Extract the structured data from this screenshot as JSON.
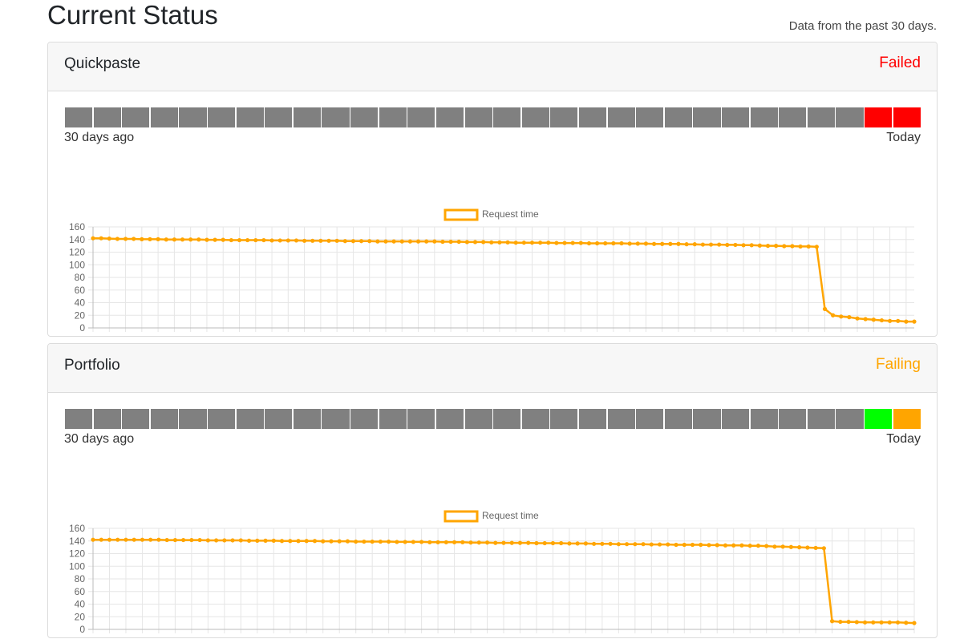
{
  "page": {
    "title": "Current Status",
    "subtitle": "Data from the past 30 days."
  },
  "colors": {
    "gray": "#808080",
    "red": "#ff0000",
    "green": "#00ff00",
    "orange": "#ffa500",
    "failed_text": "#ff0000",
    "failing_text": "#ffa500",
    "line": "#ffa500"
  },
  "services": [
    {
      "name": "Quickpaste",
      "status": "Failed",
      "status_color": "#ff0000",
      "days": [
        "gray",
        "gray",
        "gray",
        "gray",
        "gray",
        "gray",
        "gray",
        "gray",
        "gray",
        "gray",
        "gray",
        "gray",
        "gray",
        "gray",
        "gray",
        "gray",
        "gray",
        "gray",
        "gray",
        "gray",
        "gray",
        "gray",
        "gray",
        "gray",
        "gray",
        "gray",
        "gray",
        "gray",
        "red",
        "red"
      ],
      "range_start": "30 days ago",
      "range_end": "Today"
    },
    {
      "name": "Portfolio",
      "status": "Failing",
      "status_color": "#ffa500",
      "days": [
        "gray",
        "gray",
        "gray",
        "gray",
        "gray",
        "gray",
        "gray",
        "gray",
        "gray",
        "gray",
        "gray",
        "gray",
        "gray",
        "gray",
        "gray",
        "gray",
        "gray",
        "gray",
        "gray",
        "gray",
        "gray",
        "gray",
        "gray",
        "gray",
        "gray",
        "gray",
        "gray",
        "gray",
        "green",
        "orange"
      ],
      "range_start": "30 days ago",
      "range_end": "Today"
    }
  ],
  "chart_data": [
    {
      "type": "line",
      "legend": "Request time",
      "ylim": [
        0,
        160
      ],
      "yticks": [
        0,
        20,
        40,
        60,
        80,
        100,
        120,
        140,
        160
      ],
      "grid": true,
      "legend_position": "top",
      "xticks": [
        "10772",
        "11001",
        "7774",
        "9725",
        "10062",
        "7454",
        "9081",
        "9843",
        "10075",
        "6678",
        "7826",
        "9235",
        "10255",
        "10982",
        "6789",
        "6891",
        "9397",
        "10405",
        "10871",
        "11171",
        "6864",
        "7084",
        "7254",
        "9285",
        "10365",
        "10758",
        "6799",
        "8905",
        "8138",
        "6904",
        "8698",
        "8795",
        "6699",
        "8705",
        "9416",
        "10125",
        "10512",
        "7968",
        "8725",
        "9071",
        "7304",
        "9216",
        "7534",
        "6637",
        "6944",
        "9485",
        "9572",
        "9555",
        "9468",
        "9585"
      ],
      "values": [
        142,
        142,
        141.5,
        141,
        141,
        141,
        140.5,
        140.5,
        140.5,
        140,
        140,
        140,
        140,
        140,
        139.5,
        139.5,
        139.5,
        139,
        139,
        139,
        139,
        139,
        138.5,
        138.5,
        138.5,
        138.5,
        138,
        138,
        138,
        138,
        138,
        137.5,
        137.5,
        137.5,
        137.5,
        137,
        137,
        137,
        137,
        137,
        137,
        137,
        137,
        136.5,
        136.5,
        136.5,
        136,
        136,
        136,
        135.5,
        135.5,
        135.5,
        135,
        135,
        135,
        135,
        135,
        134.5,
        134.5,
        134.5,
        134.5,
        134,
        134,
        134,
        134,
        134,
        133.5,
        133.5,
        133.5,
        133,
        133,
        133,
        133,
        132.5,
        132.5,
        132,
        132,
        132,
        131.5,
        131.5,
        131,
        131,
        130.5,
        130,
        130,
        129.5,
        129.5,
        129,
        129,
        128.5,
        30,
        20,
        18,
        17,
        15,
        14,
        13,
        12,
        11,
        11,
        10,
        10
      ]
    },
    {
      "type": "line",
      "legend": "Request time",
      "ylim": [
        0,
        160
      ],
      "yticks": [
        0,
        20,
        40,
        60,
        80,
        100,
        120,
        140,
        160
      ],
      "grid": true,
      "legend_position": "top",
      "xticks": [
        "6935",
        "7205",
        "7522",
        "9926",
        "6590",
        "6800",
        "7702",
        "8740",
        "10266",
        "7035",
        "8189",
        "10256",
        "10336",
        "6638",
        "7490",
        "7827",
        "8053",
        "8756",
        "11082",
        "7135",
        "8156",
        "8679",
        "9417",
        "6925",
        "7683",
        "8806",
        "10012",
        "10882",
        "7939",
        "6715",
        "6865",
        "7322",
        "8609",
        "9844",
        "6620",
        "6700",
        "6836",
        "8139",
        "6760",
        "7555",
        "10773",
        "8089",
        "7275",
        "8640",
        "9637",
        "9574",
        "9469",
        "9521",
        "9586",
        "9536"
      ],
      "values": [
        142,
        142,
        142,
        142,
        142,
        142,
        142,
        142,
        142,
        141.5,
        141.5,
        141.5,
        141.5,
        141.5,
        141,
        141,
        141,
        141,
        141,
        140.5,
        140.5,
        140.5,
        140.5,
        140,
        140,
        140,
        140,
        140,
        139.5,
        139.5,
        139.5,
        139.5,
        139,
        139,
        139,
        139,
        139,
        138.5,
        138.5,
        138.5,
        138.5,
        138,
        138,
        138,
        138,
        138,
        137.5,
        137.5,
        137.5,
        137,
        137,
        137,
        137,
        137,
        136.5,
        136.5,
        136.5,
        136.5,
        136,
        136,
        136,
        135.5,
        135.5,
        135.5,
        135,
        135,
        135,
        135,
        134.5,
        134.5,
        134.5,
        134,
        134,
        134,
        134,
        133.5,
        133.5,
        133,
        133,
        133,
        132.5,
        132.5,
        132,
        131,
        131,
        130.5,
        130,
        129.5,
        129,
        128.5,
        13,
        12,
        12,
        11.5,
        11,
        11,
        11,
        11,
        11,
        10.5,
        10
      ]
    }
  ]
}
